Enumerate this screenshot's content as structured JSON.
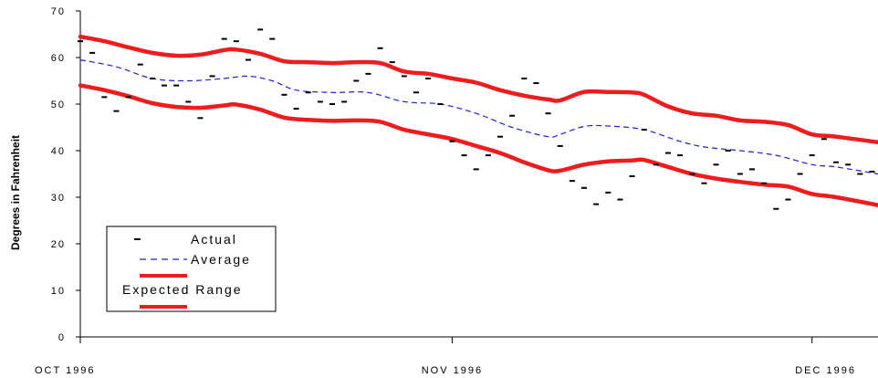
{
  "chart_data": {
    "type": "line",
    "ylabel": "Degrees in Fahrenheit",
    "xlabel": "",
    "ylim": [
      0,
      70
    ],
    "y_ticks": [
      "0",
      "10",
      "20",
      "30",
      "40",
      "50",
      "60",
      "70"
    ],
    "x_range_days": [
      0,
      66.5
    ],
    "x_ticks": [
      {
        "label": "OCT 1996",
        "day": 0
      },
      {
        "label": "NOV 1996",
        "day": 31
      },
      {
        "label": "DEC 1996",
        "day": 61
      }
    ],
    "grid": false,
    "legend_position": "bottom-left",
    "legend": {
      "actual": "Actual",
      "average": "Average",
      "expected": "Expected Range"
    },
    "colors": {
      "actual": "#000000",
      "average": "#1f1fd6",
      "range": "#ee1c1c"
    },
    "series": [
      {
        "name": "Actual",
        "style": "dash-marker",
        "x": [
          0,
          1,
          2,
          3,
          4,
          5,
          6,
          7,
          8,
          9,
          10,
          11,
          12,
          13,
          14,
          15,
          16,
          17,
          18,
          19,
          20,
          21,
          22,
          23,
          24,
          25,
          26,
          27,
          28,
          29,
          30,
          31,
          32,
          33,
          34,
          35,
          36,
          37,
          38,
          39,
          40,
          41,
          42,
          43,
          44,
          45,
          46,
          47,
          48,
          49,
          50,
          51,
          52,
          53,
          54,
          55,
          56,
          57,
          58,
          59,
          60,
          61,
          62,
          63,
          64,
          65,
          66
        ],
        "y": [
          63.5,
          61,
          51.5,
          48.5,
          51.5,
          58.5,
          55.5,
          54,
          54,
          50.5,
          47,
          56,
          64,
          63.5,
          59.5,
          66,
          64,
          52,
          49,
          52.5,
          50.5,
          50,
          50.5,
          55,
          56.5,
          62,
          59,
          56,
          52.5,
          55.5,
          50,
          42,
          39,
          36,
          39,
          43,
          47.5,
          55.5,
          54.5,
          48,
          41,
          33.5,
          32,
          28.5,
          31,
          29.5,
          34.5,
          44.5,
          37,
          39.5,
          39,
          35,
          33,
          37,
          40,
          35,
          36,
          33,
          27.5,
          29.5,
          35,
          39,
          42.5,
          37.5,
          37,
          35,
          35.5
        ]
      },
      {
        "name": "Average",
        "style": "dashed",
        "x": [
          0,
          3,
          6,
          9,
          12,
          14,
          16,
          18,
          21,
          24,
          27,
          30,
          33,
          36,
          39,
          40,
          42,
          44,
          47,
          50,
          52,
          55,
          58,
          61,
          63,
          66.5
        ],
        "y": [
          59.5,
          58,
          55.5,
          55,
          55.5,
          56,
          55,
          53,
          52.5,
          52.5,
          50.5,
          50,
          48,
          45,
          43,
          43.5,
          45.2,
          45.3,
          44.5,
          42,
          40.8,
          40,
          39,
          37,
          36.5,
          35
        ]
      },
      {
        "name": "Expected Range (upper)",
        "style": "thick",
        "x": [
          0,
          2,
          4,
          6,
          8,
          10,
          12,
          13,
          15,
          17,
          19,
          21,
          23,
          25,
          27,
          29,
          31,
          33,
          35,
          37,
          39,
          40,
          42,
          44,
          46,
          47,
          49,
          51,
          53,
          55,
          57,
          59,
          61,
          63,
          66.5
        ],
        "y": [
          64.5,
          63.5,
          62.2,
          61,
          60.4,
          60.6,
          61.6,
          61.7,
          60.8,
          59.2,
          59,
          58.8,
          59,
          58.8,
          57,
          56.5,
          55.5,
          54.6,
          53,
          51.8,
          51,
          50.8,
          52.6,
          52.6,
          52.5,
          52,
          49.5,
          48,
          47.5,
          46.5,
          46.2,
          45.5,
          43.5,
          43,
          41.8
        ]
      },
      {
        "name": "Expected Range (lower)",
        "style": "thick",
        "x": [
          0,
          2,
          4,
          6,
          8,
          10,
          12,
          13,
          15,
          17,
          19,
          21,
          23,
          25,
          27,
          29,
          31,
          33,
          35,
          37,
          39,
          40,
          42,
          44,
          46,
          47,
          49,
          51,
          53,
          55,
          57,
          59,
          61,
          63,
          66.5
        ],
        "y": [
          54,
          53,
          51.7,
          50.2,
          49.4,
          49.2,
          49.7,
          49.9,
          48.8,
          47.1,
          46.6,
          46.4,
          46.5,
          46.2,
          44.5,
          43.5,
          42.5,
          41,
          39.5,
          37.5,
          35.8,
          35.7,
          37,
          37.7,
          37.9,
          38,
          36.5,
          35,
          34,
          33.3,
          32.7,
          32.3,
          30.7,
          30,
          28.3
        ]
      }
    ]
  }
}
